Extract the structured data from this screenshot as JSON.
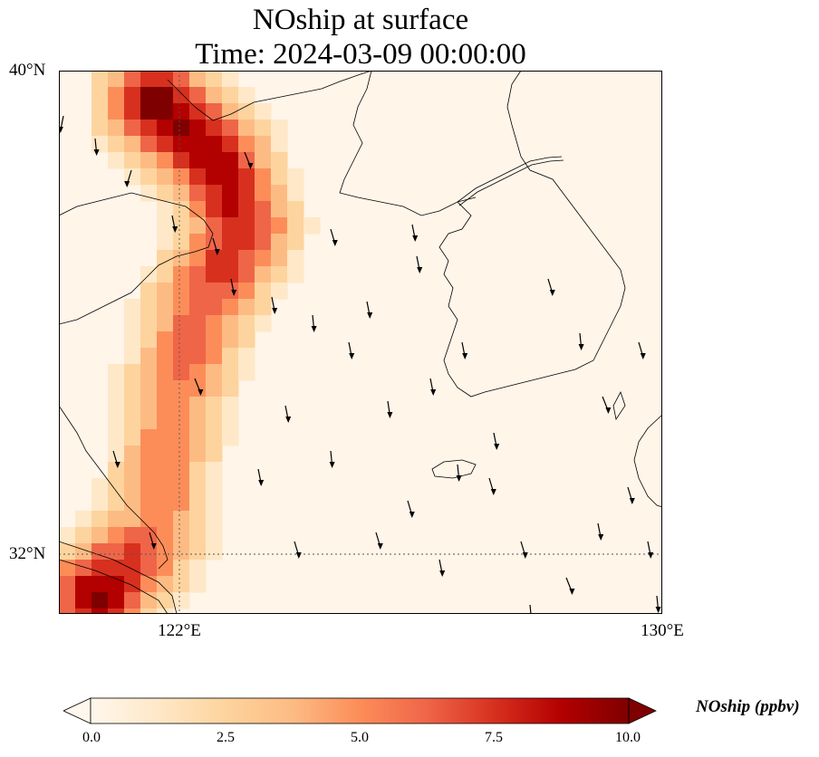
{
  "title": {
    "line1": "NOship at surface",
    "line2": "Time: 2024-03-09 00:00:00"
  },
  "axes": {
    "lat_ticks": [
      {
        "label": "40°N",
        "value": 40
      },
      {
        "label": "32°N",
        "value": 32
      }
    ],
    "lon_ticks": [
      {
        "label": "122°E",
        "value": 122
      },
      {
        "label": "130°E",
        "value": 130
      }
    ],
    "extent": {
      "lon_min": 120,
      "lon_max": 130,
      "lat_min": 31,
      "lat_max": 40
    },
    "gridlines": "dotted"
  },
  "colorbar": {
    "label": "NOship (ppbv)",
    "ticks": [
      "0.0",
      "2.5",
      "5.0",
      "7.5",
      "10.0"
    ],
    "min": 0,
    "max": 10,
    "extend": "both",
    "colormap": "OrRd",
    "colors": [
      "#fff7ec",
      "#fee8c8",
      "#fdd49e",
      "#fdbb84",
      "#fc8d59",
      "#ef6548",
      "#d7301f",
      "#b30000",
      "#7f0000"
    ]
  },
  "chart_data": {
    "type": "heatmap",
    "variable": "NOship",
    "level": "surface",
    "unit": "ppbv",
    "time": "2024-03-09 00:00:00",
    "shipping_lanes_lonlat_value": [
      {
        "lon": 121.5,
        "lat": 39.6,
        "value": 10
      },
      {
        "lon": 122.5,
        "lat": 38.6,
        "value": 9
      },
      {
        "lon": 122.9,
        "lat": 37.5,
        "value": 8
      },
      {
        "lon": 122.2,
        "lat": 36.2,
        "value": 6.5
      },
      {
        "lon": 121.8,
        "lat": 34.8,
        "value": 5.5
      },
      {
        "lon": 121.6,
        "lat": 33.6,
        "value": 5
      },
      {
        "lon": 121.5,
        "lat": 32.5,
        "value": 5.5
      },
      {
        "lon": 120.5,
        "lat": 31.4,
        "value": 10
      }
    ],
    "background_value": 0.5,
    "wind_vectors": "southward arrows across the Yellow Sea"
  }
}
